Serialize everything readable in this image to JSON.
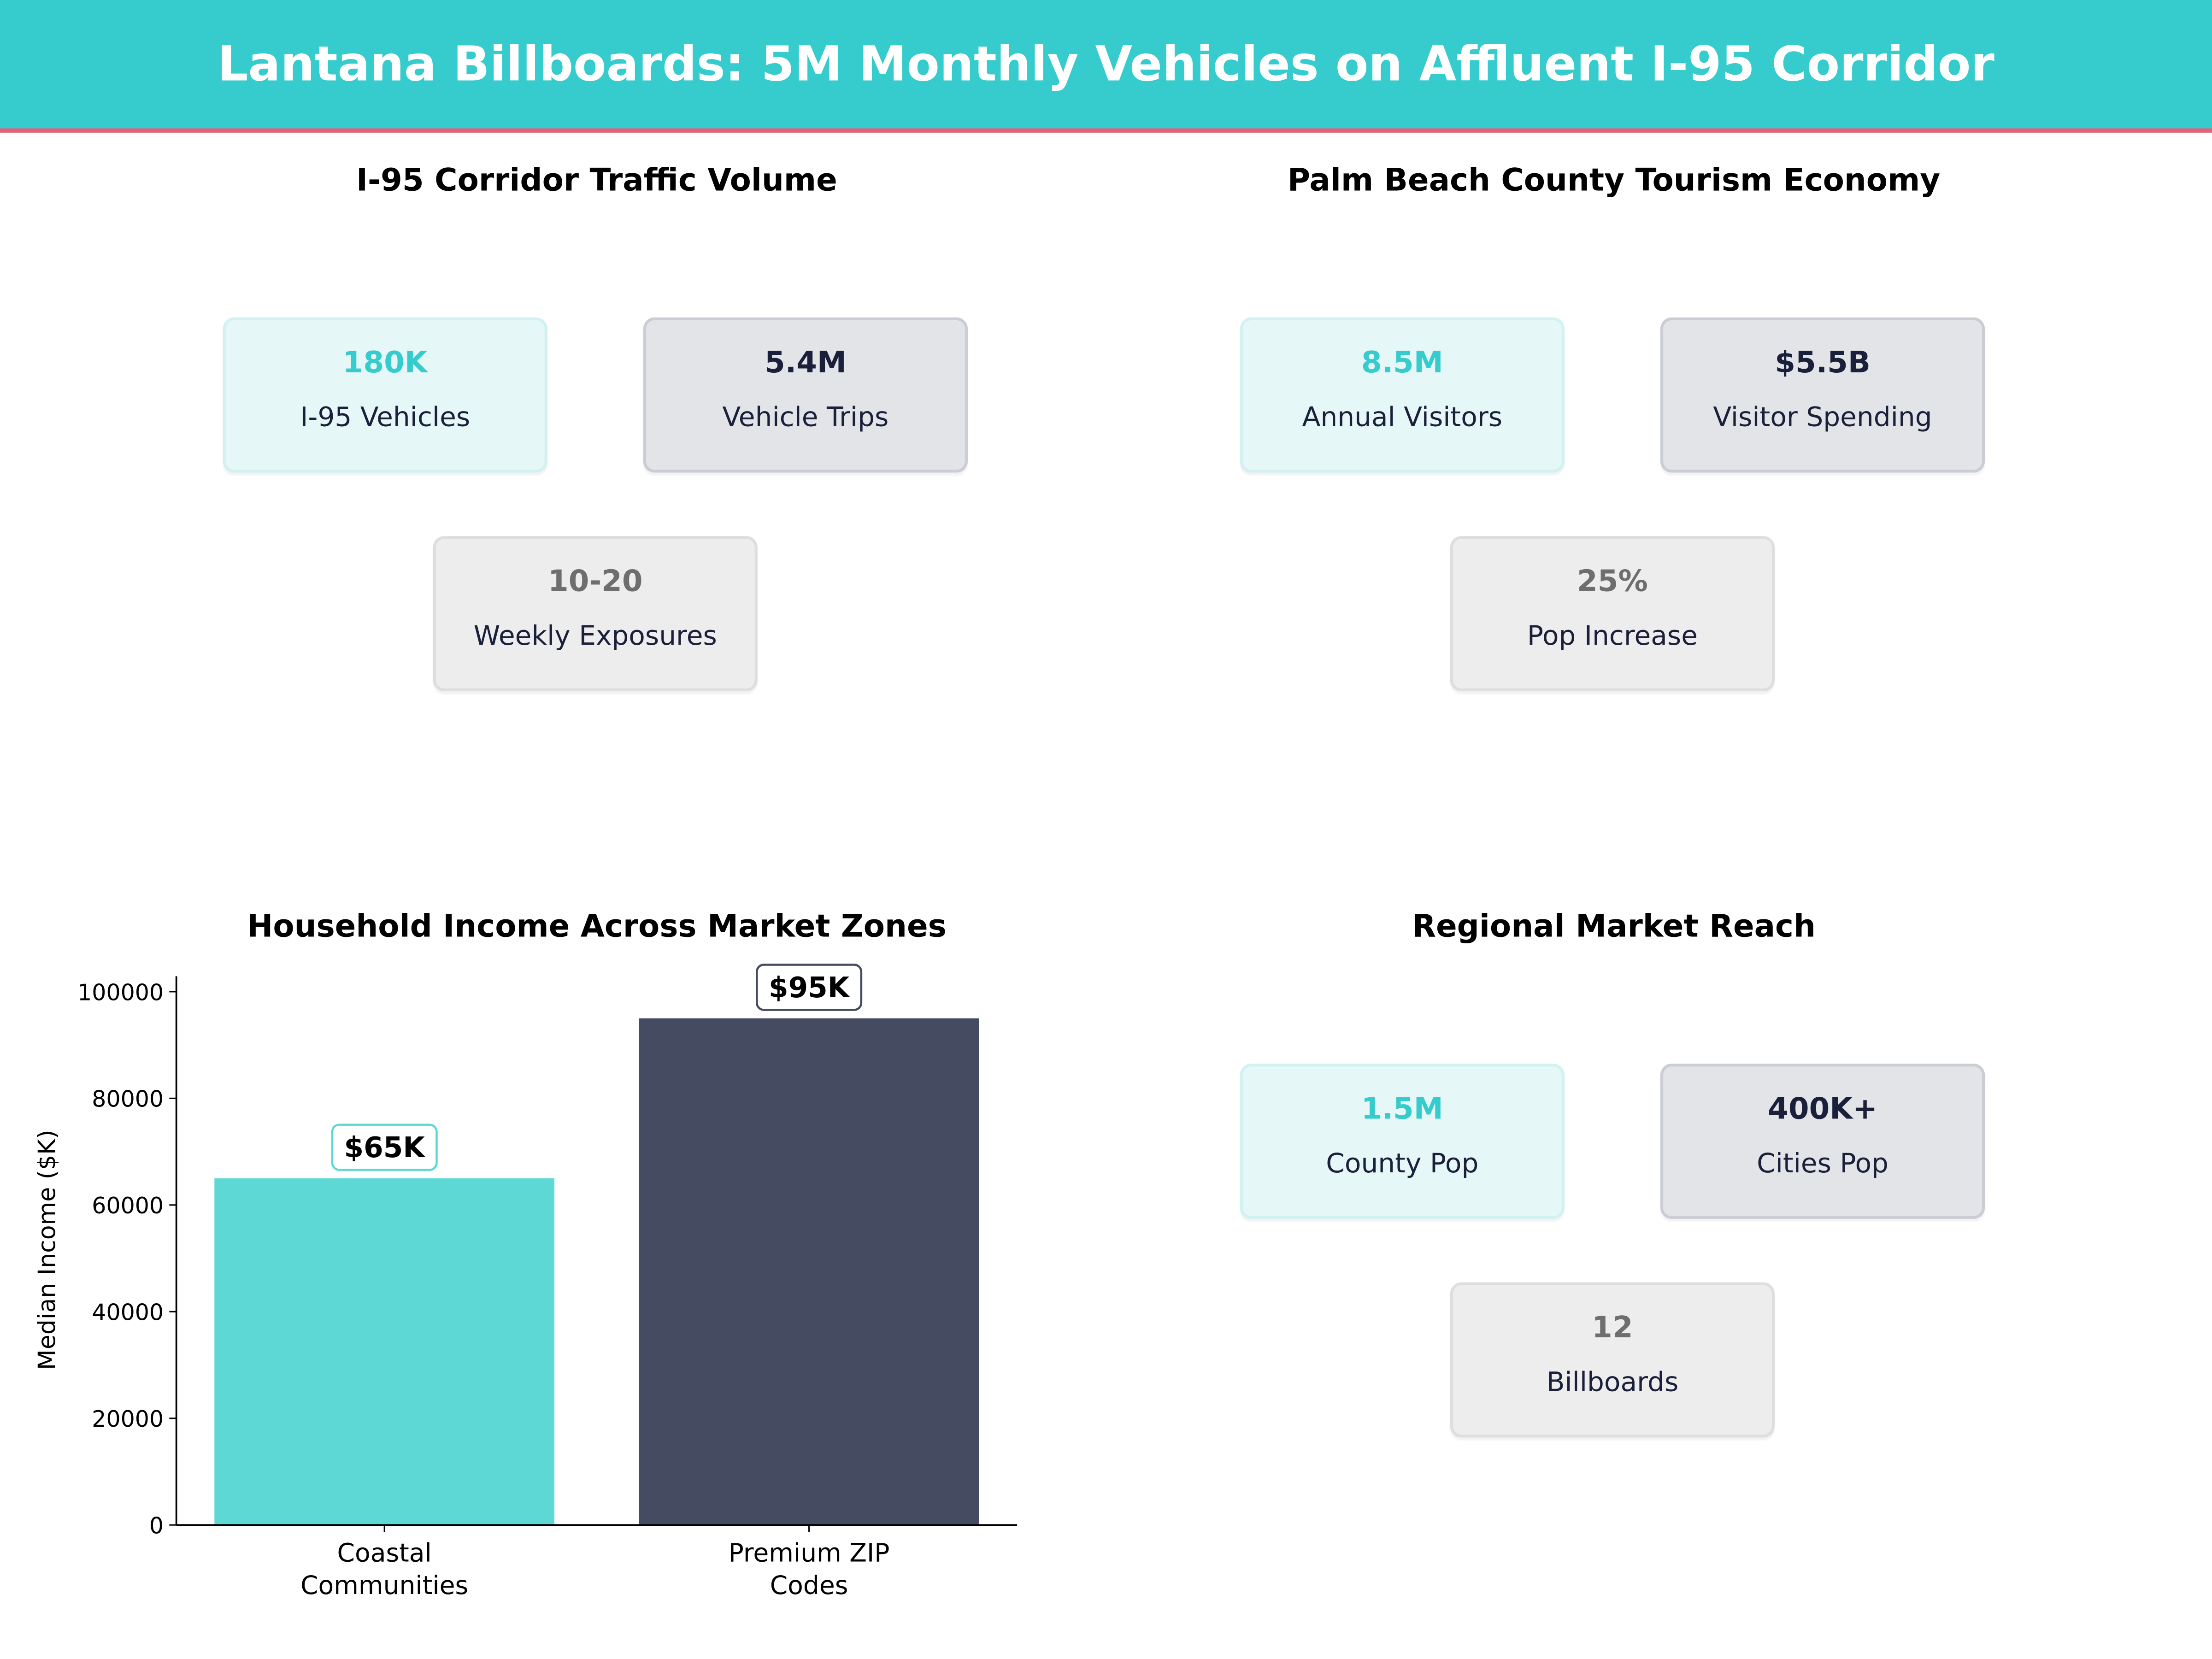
{
  "header": {
    "title": "Lantana Billboards: 5M Monthly Vehicles on Affluent I-95 Corridor"
  },
  "colors": {
    "accent": "#36CBCC",
    "accent_line": "#EA5F74",
    "dark": "#454B60",
    "bar_light": "#5ED8D5"
  },
  "panels": [
    {
      "title": "I-95 Corridor Traffic Volume",
      "cards": [
        {
          "value": "180K",
          "label": "I-95 Vehicles"
        },
        {
          "value": "5.4M",
          "label": "Vehicle Trips"
        },
        {
          "value": "10-20",
          "label": "Weekly Exposures"
        }
      ]
    },
    {
      "title": "Palm Beach County Tourism Economy",
      "cards": [
        {
          "value": "8.5M",
          "label": "Annual Visitors"
        },
        {
          "value": "$5.5B",
          "label": "Visitor Spending"
        },
        {
          "value": "25%",
          "label": "Pop Increase"
        }
      ]
    },
    {
      "title": "Regional Market Reach",
      "cards": [
        {
          "value": "1.5M",
          "label": "County Pop"
        },
        {
          "value": "400K+",
          "label": "Cities Pop"
        },
        {
          "value": "12",
          "label": "Billboards"
        }
      ]
    }
  ],
  "chart_data": {
    "type": "bar",
    "title": "Household Income Across Market Zones",
    "xlabel": "",
    "ylabel": "Median Income ($K)",
    "categories": [
      "Coastal\nCommunities",
      "Premium ZIP\nCodes"
    ],
    "values": [
      65000,
      95000
    ],
    "data_labels": [
      "$65K",
      "$95K"
    ],
    "bar_colors": [
      "#5ED8D5",
      "#454B60"
    ],
    "ylim": [
      0,
      102900
    ],
    "yticks": [
      0,
      20000,
      40000,
      60000,
      80000,
      100000
    ],
    "grid": false
  }
}
